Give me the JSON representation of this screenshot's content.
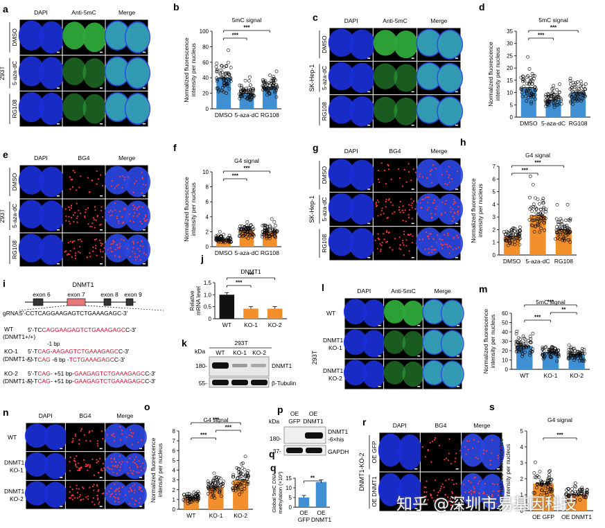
{
  "colors": {
    "blue_bar": "#3f8fd2",
    "orange_bar": "#f28f2a",
    "red_seq": "#c8102e",
    "exon_red": "#e8787a",
    "exon_dark": "#333333",
    "wm": "#ffffff"
  },
  "micro": {
    "a": {
      "letter": "a",
      "cols": [
        "DAPI",
        "Anti-5mC",
        "Merge"
      ],
      "cell_line": "293T",
      "rows": [
        "DMSO",
        "5-aza-dC",
        "RG108"
      ]
    },
    "c": {
      "letter": "c",
      "cols": [
        "DAPI",
        "Anti-5mC",
        "Merge"
      ],
      "cell_line": "SK-Hep-1",
      "rows": [
        "DMSO",
        "5-aza-dC",
        "RG108"
      ]
    },
    "e": {
      "letter": "e",
      "cols": [
        "DAPI",
        "BG4",
        "Merge"
      ],
      "cell_line": "293T",
      "rows": [
        "DMSO",
        "5-aza-dC",
        "RG108"
      ]
    },
    "g": {
      "letter": "g",
      "cols": [
        "DAPI",
        "BG4",
        "Merge"
      ],
      "cell_line": "SK-Hep-1",
      "rows": [
        "DMSO",
        "5-aza-dC",
        "RG108"
      ]
    },
    "l": {
      "letter": "l",
      "cols": [
        "DAPI",
        "Anti-5mC",
        "Merge"
      ],
      "cell_line": "293T",
      "rows": [
        "WT",
        "DNMT1 KO-1",
        "DNMT1 KO-2"
      ]
    },
    "n": {
      "letter": "n",
      "cols": [
        "DAPI",
        "BG4",
        "Merge"
      ],
      "cell_line": "",
      "rows": [
        "WT",
        "DNMT1 KO-1",
        "DNMT1 KO-2"
      ]
    },
    "r": {
      "letter": "r",
      "cols": [
        "DAPI",
        "BG4",
        "Merge"
      ],
      "cell_line": "DNMT1-KO-2",
      "rows": [
        "OE GFP",
        "OE DNMT1"
      ]
    }
  },
  "chart_data": [
    {
      "panel": "b",
      "type": "bar",
      "title": "5mC signal",
      "ylabel": "Normalized fluorescence intensity per nucleus",
      "categories": [
        "DMSO",
        "5-aza-dC",
        "RG108"
      ],
      "values": [
        40,
        20,
        28
      ],
      "ylim": [
        0,
        100
      ],
      "yticks": [
        0,
        20,
        40,
        60,
        80,
        100
      ],
      "color": "blue",
      "scatter_points": true,
      "sig": [
        {
          "from": 0,
          "to": 1,
          "label": "***"
        },
        {
          "from": 0,
          "to": 2,
          "label": "***"
        }
      ]
    },
    {
      "panel": "d",
      "type": "bar",
      "title": "5mC signal",
      "ylabel": "Normalized fluorescence intensity per nucleus",
      "categories": [
        "DMSO",
        "5-aza-dC",
        "RG108"
      ],
      "values": [
        12,
        7,
        10
      ],
      "ylim": [
        0,
        35
      ],
      "yticks": [
        0,
        5,
        10,
        15,
        20,
        25,
        30,
        35
      ],
      "color": "blue",
      "scatter_points": true,
      "sig": [
        {
          "from": 0,
          "to": 1,
          "label": "***"
        },
        {
          "from": 0,
          "to": 2,
          "label": "***"
        }
      ]
    },
    {
      "panel": "f",
      "type": "bar",
      "title": "G4 signal",
      "ylabel": "Normalized fluorescence intensity per nucleus",
      "categories": [
        "DMSO",
        "5-aza-dC",
        "RG108"
      ],
      "values": [
        1.0,
        2.2,
        2.0
      ],
      "ylim": [
        0,
        10
      ],
      "yticks": [
        0,
        2,
        4,
        6,
        8,
        10
      ],
      "color": "orange",
      "scatter_points": true,
      "sig": [
        {
          "from": 0,
          "to": 1,
          "label": "***"
        },
        {
          "from": 0,
          "to": 2,
          "label": "***"
        }
      ]
    },
    {
      "panel": "h",
      "type": "bar",
      "title": "G4 signal",
      "ylabel": "Normalized fluorescence intensity per nucleus",
      "categories": [
        "DMSO",
        "5-aza-dC",
        "RG108"
      ],
      "values": [
        1.5,
        3.1,
        2.0
      ],
      "ylim": [
        0,
        7
      ],
      "yticks": [
        0,
        1,
        2,
        3,
        4,
        5,
        6,
        7
      ],
      "color": "orange",
      "scatter_points": true,
      "sig": [
        {
          "from": 0,
          "to": 1,
          "label": "***"
        },
        {
          "from": 0,
          "to": 2,
          "label": "***"
        }
      ]
    },
    {
      "panel": "j",
      "type": "bar",
      "title": "DNMT1",
      "ylabel": "Relative mRNA level",
      "categories": [
        "WT",
        "KO-1",
        "KO-2"
      ],
      "values": [
        1.0,
        0.42,
        0.42
      ],
      "ylim": [
        0,
        1.5
      ],
      "yticks": [
        0,
        0.5,
        1.0,
        1.5
      ],
      "ytick_labels": [
        "0",
        "0.5",
        "1.0",
        "1.5"
      ],
      "colors": [
        "black",
        "orange",
        "orange"
      ],
      "scatter_points": false,
      "sig": [
        {
          "from": 0,
          "to": 1,
          "label": "***"
        },
        {
          "from": 0,
          "to": 2,
          "label": "***"
        }
      ]
    },
    {
      "panel": "m",
      "type": "bar",
      "title": "5mC signal",
      "ylabel": "Normalized fluorescence intensity per nucleus",
      "categories": [
        "WT",
        "KO-1",
        "KO-2"
      ],
      "values": [
        25,
        18,
        16
      ],
      "ylim": [
        0,
        60
      ],
      "yticks": [
        0,
        10,
        20,
        30,
        40,
        50,
        60
      ],
      "color": "blue",
      "scatter_points": true,
      "sig": [
        {
          "from": 0,
          "to": 1,
          "label": "***"
        },
        {
          "from": 0,
          "to": 2,
          "label": "***"
        },
        {
          "from": 1,
          "to": 2,
          "label": "**"
        }
      ]
    },
    {
      "panel": "o",
      "type": "bar",
      "title": "G4 signal",
      "ylabel": "Normalized fluorescence intensity per nucleus",
      "categories": [
        "WT",
        "KO-1",
        "KO-2"
      ],
      "values": [
        1.2,
        2.3,
        3.0
      ],
      "ylim": [
        0,
        8
      ],
      "yticks": [
        0,
        1,
        2,
        3,
        4,
        5,
        6,
        7,
        8
      ],
      "color": "orange",
      "scatter_points": true,
      "sig": [
        {
          "from": 0,
          "to": 1,
          "label": "***"
        },
        {
          "from": 0,
          "to": 2,
          "label": "***"
        },
        {
          "from": 1,
          "to": 2,
          "label": "***"
        }
      ]
    },
    {
      "panel": "q",
      "type": "bar",
      "title": "",
      "ylabel": "Global 5mC DNA methylation (×10³)",
      "categories": [
        "OE GFP",
        "OE DNMT1"
      ],
      "values": [
        5,
        13
      ],
      "ylim": [
        0,
        15
      ],
      "yticks": [
        0,
        5,
        10,
        15
      ],
      "colors": [
        "blue",
        "blue"
      ],
      "scatter_points": false,
      "sig": [
        {
          "from": 0,
          "to": 1,
          "label": "**"
        }
      ]
    },
    {
      "panel": "s",
      "type": "bar",
      "title": "G4 signal",
      "ylabel": "Normalized fluorescence intensity per nucleus",
      "categories": [
        "OE GFP",
        "OE DNMT1"
      ],
      "values": [
        1.7,
        1.0
      ],
      "ylim": [
        0,
        5
      ],
      "yticks": [
        0,
        1,
        2,
        3,
        4,
        5
      ],
      "color": "orange",
      "scatter_points": true,
      "sig": [
        {
          "from": 0,
          "to": 1,
          "label": "***"
        }
      ]
    }
  ],
  "panel_i": {
    "letter": "i",
    "gene": "DNMT1",
    "exons": [
      "exon 6",
      "exon 7",
      "exon 8",
      "exon 9"
    ],
    "grna_label": "gRNA:",
    "grna_seq": "5'-CCTCAGGAAGAGTCTGAAAGAGC-3'",
    "wt": {
      "name": "WT",
      "geno": "(DNMT1+/+)",
      "pre": "5'-TC",
      "red": "CAGGAAGAGTCTGAAAGAGC",
      "post": "C-3'"
    },
    "ko1": {
      "name": "KO-1",
      "geno": "(DNMT1-/-)",
      "note": "-1 bp",
      "line1_pre": "5'-T",
      "line1_red1": "CAG",
      "line1_mid": "-",
      "line1_red2": "AAGAGTCTGAAAGAGC",
      "line1_post": "C-3'",
      "line2_pre": "5'-T",
      "line2_red1": "CAG",
      "line2_mid": " -6 bp -",
      "line2_red2": "TCTGAAAGAGC",
      "line2_post": "C-3'"
    },
    "ko2": {
      "name": "KO-2",
      "geno": "(DNMT1-/-)",
      "line_pre": "5'-T",
      "line_red1": "CAG",
      "line_mid": "- +51 bp-",
      "line_red2": "GAAGAGTCTGAAAGAGC",
      "line_post": "C-3'"
    }
  },
  "panel_k": {
    "letter": "k",
    "kda": "kDa",
    "cell": "293T",
    "lanes": [
      "WT",
      "KO-1",
      "KO-2"
    ],
    "markers": [
      "180-",
      "55-"
    ],
    "bands": [
      "DNMT1",
      "β-Tubulin"
    ]
  },
  "panel_p": {
    "letter": "p",
    "kda": "kDa",
    "lanes": [
      "OE GFP",
      "OE DNMT1"
    ],
    "markers": [
      "180-",
      "37-"
    ],
    "bands": [
      "DNMT1",
      "-6×his",
      "GAPDH"
    ]
  },
  "watermark": "知乎 @深圳市易基因科技"
}
